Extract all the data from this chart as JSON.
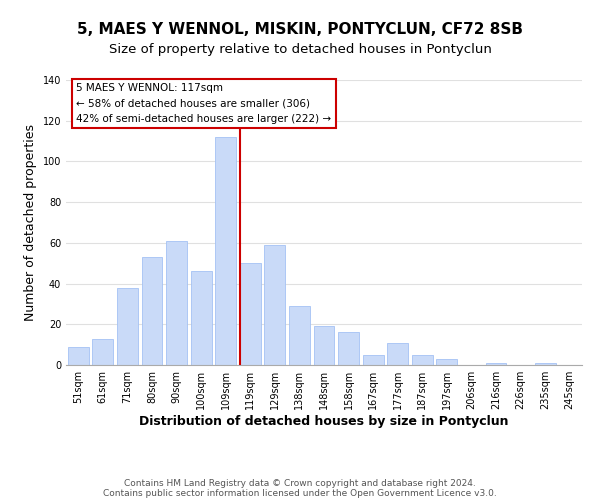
{
  "title": "5, MAES Y WENNOL, MISKIN, PONTYCLUN, CF72 8SB",
  "subtitle": "Size of property relative to detached houses in Pontyclun",
  "xlabel": "Distribution of detached houses by size in Pontyclun",
  "ylabel": "Number of detached properties",
  "bar_labels": [
    "51sqm",
    "61sqm",
    "71sqm",
    "80sqm",
    "90sqm",
    "100sqm",
    "109sqm",
    "119sqm",
    "129sqm",
    "138sqm",
    "148sqm",
    "158sqm",
    "167sqm",
    "177sqm",
    "187sqm",
    "197sqm",
    "206sqm",
    "216sqm",
    "226sqm",
    "235sqm",
    "245sqm"
  ],
  "bar_values": [
    9,
    13,
    38,
    53,
    61,
    46,
    112,
    50,
    59,
    29,
    19,
    16,
    5,
    11,
    5,
    3,
    0,
    1,
    0,
    1,
    0
  ],
  "bar_color": "#c9daf8",
  "bar_edge_color": "#a4c2f4",
  "vline_color": "#cc0000",
  "annotation_title": "5 MAES Y WENNOL: 117sqm",
  "annotation_line1": "← 58% of detached houses are smaller (306)",
  "annotation_line2": "42% of semi-detached houses are larger (222) →",
  "annotation_box_color": "#ffffff",
  "annotation_box_edge": "#cc0000",
  "ylim": [
    0,
    140
  ],
  "footer1": "Contains HM Land Registry data © Crown copyright and database right 2024.",
  "footer2": "Contains public sector information licensed under the Open Government Licence v3.0.",
  "bg_color": "#ffffff",
  "grid_color": "#e0e0e0",
  "title_fontsize": 11,
  "subtitle_fontsize": 9.5,
  "axis_label_fontsize": 9,
  "tick_fontsize": 7,
  "footer_fontsize": 6.5,
  "annotation_fontsize": 7.5
}
